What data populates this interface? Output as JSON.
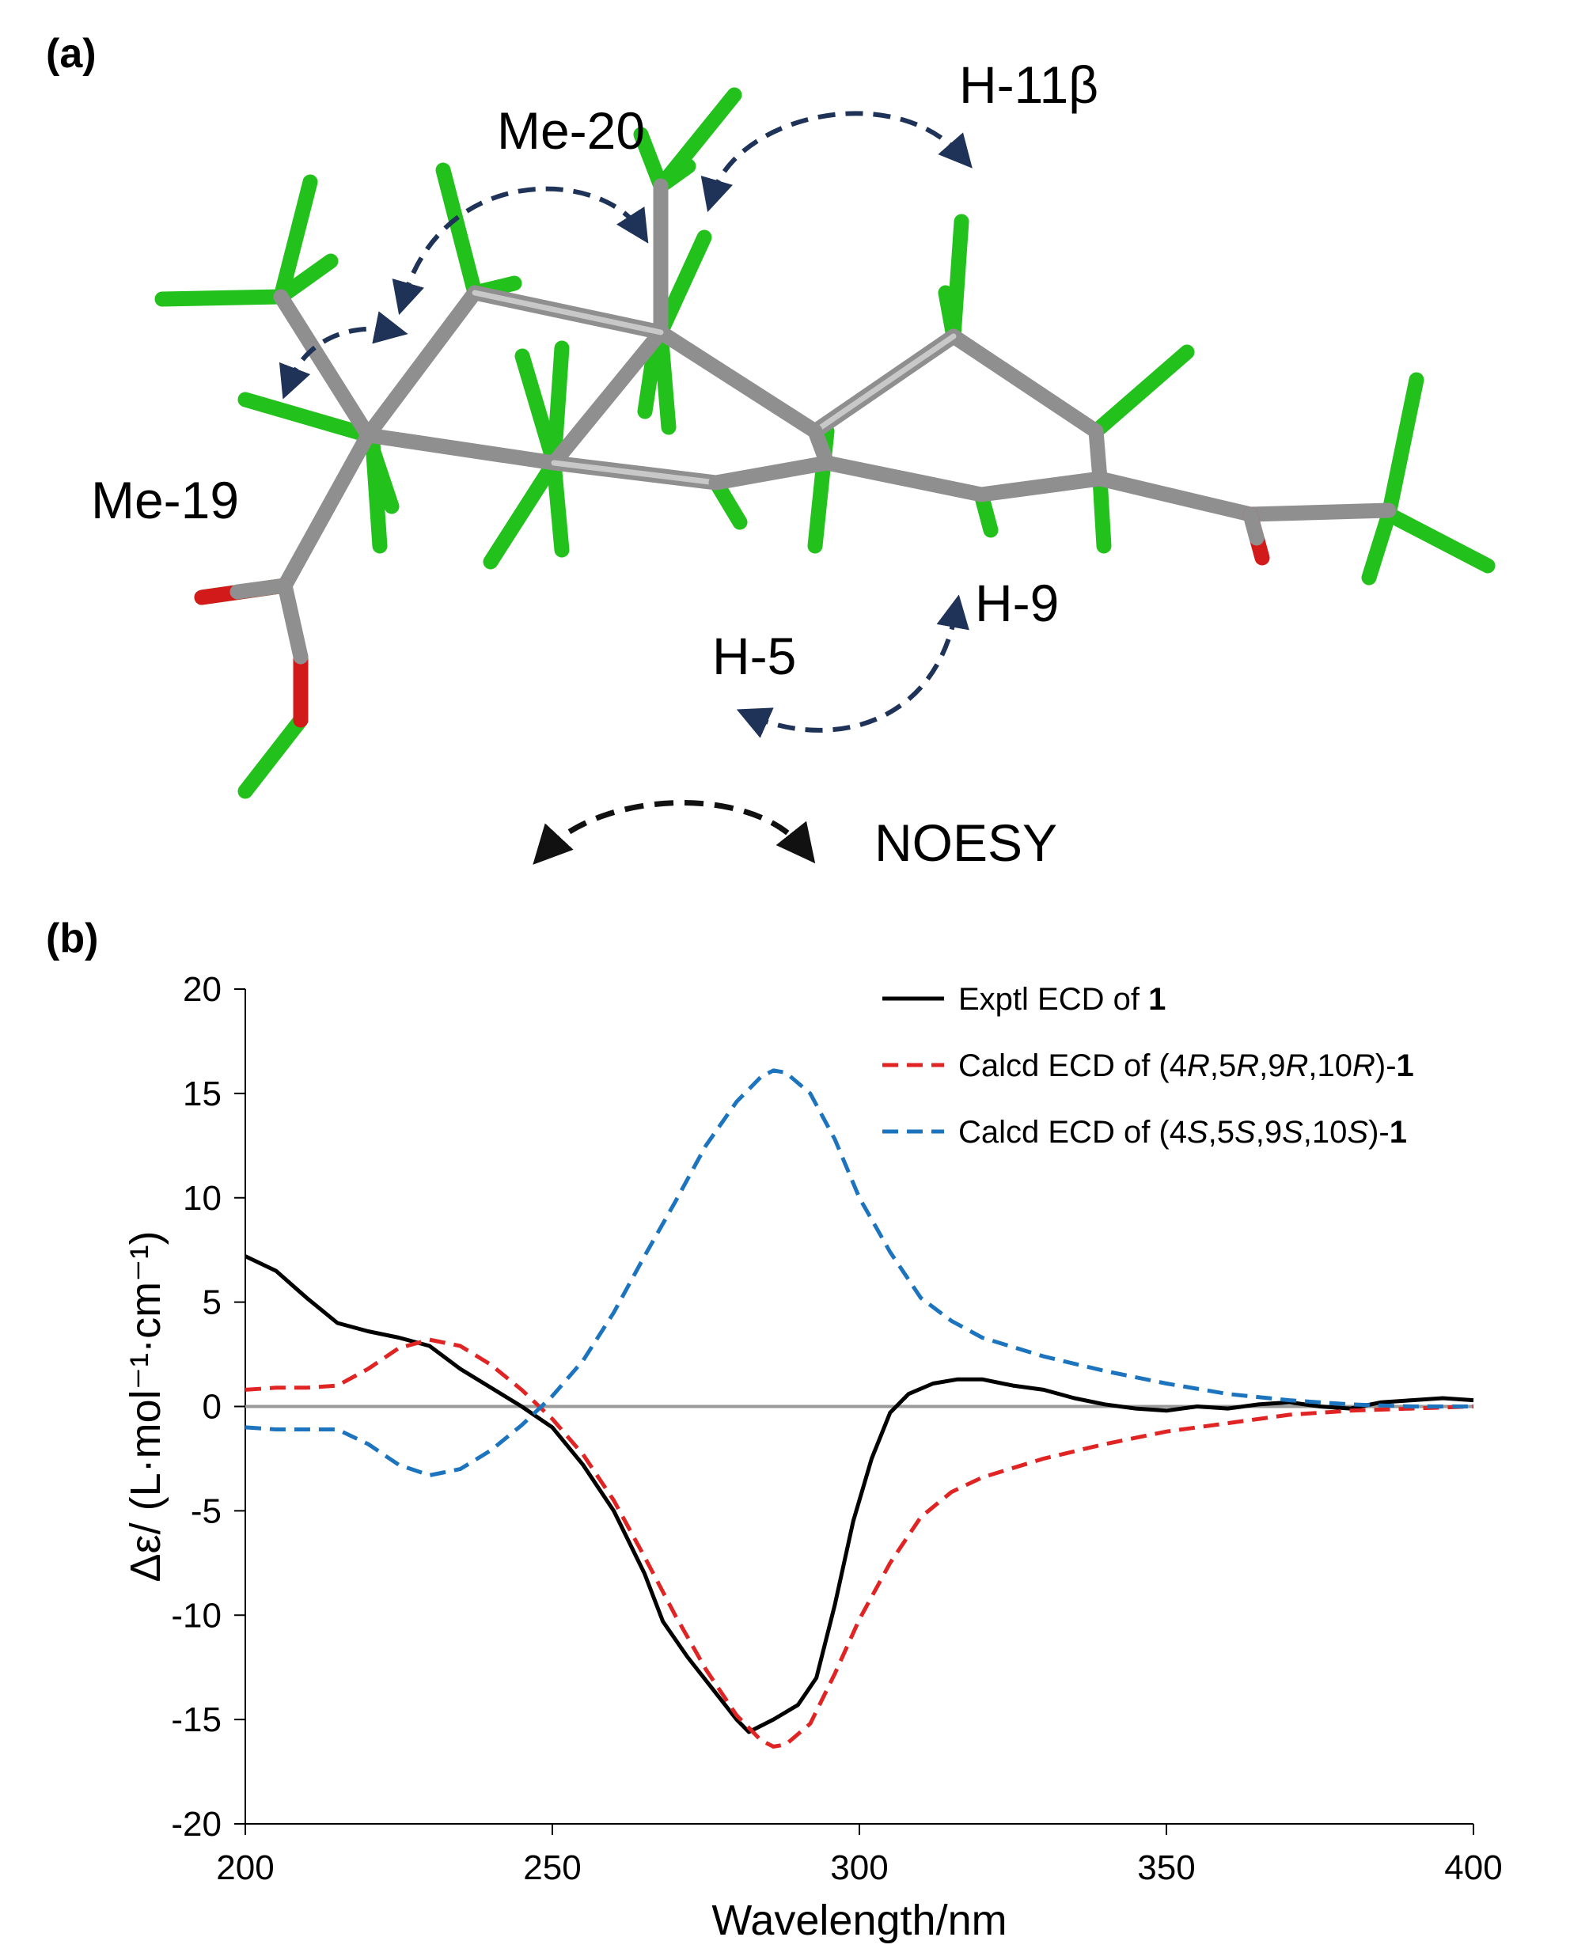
{
  "panel_a": {
    "label": "(a)",
    "atom_labels": [
      "Me-20",
      "H-11β",
      "Me-19",
      "H-5",
      "H-9"
    ],
    "legend_label": "NOESY",
    "colors": {
      "carbon": "#8f8f8f",
      "hydrogen": "#22c11c",
      "oxygen": "#d21a1a",
      "noe_arrow": "#1f3358",
      "legend_arrow": "#111111"
    }
  },
  "panel_b": {
    "label": "(b)"
  },
  "chart_data": {
    "type": "line",
    "xlabel": "Wavelength/nm",
    "ylabel": "Δε/ (L·mol⁻¹·cm⁻¹)",
    "xlim": [
      200,
      400
    ],
    "ylim": [
      -20,
      20
    ],
    "xticks": [
      200,
      250,
      300,
      350,
      400
    ],
    "yticks": [
      20,
      15,
      10,
      5,
      0,
      -5,
      -10,
      -15,
      -20
    ],
    "grid": false,
    "zero_line": true,
    "legend_position": "top-right",
    "series": [
      {
        "name": "Exptl ECD of 1",
        "legend_rich": [
          {
            "t": "Exptl ECD of "
          },
          {
            "t": "1",
            "b": true
          }
        ],
        "color": "#000000",
        "dash": "solid",
        "x": [
          200,
          205,
          210,
          215,
          220,
          225,
          230,
          235,
          240,
          245,
          250,
          255,
          260,
          265,
          268,
          272,
          276,
          280,
          282,
          286,
          290,
          293,
          296,
          299,
          302,
          305,
          308,
          312,
          316,
          320,
          325,
          330,
          335,
          340,
          345,
          350,
          355,
          360,
          365,
          370,
          375,
          380,
          385,
          390,
          395,
          400
        ],
        "y": [
          7.2,
          6.5,
          5.2,
          4.0,
          3.6,
          3.3,
          2.9,
          1.8,
          0.9,
          0.0,
          -1.0,
          -2.8,
          -5.0,
          -8.0,
          -10.3,
          -12.0,
          -13.5,
          -15.0,
          -15.6,
          -15.0,
          -14.3,
          -13.0,
          -9.5,
          -5.5,
          -2.5,
          -0.3,
          0.6,
          1.1,
          1.3,
          1.3,
          1.0,
          0.8,
          0.4,
          0.1,
          -0.1,
          -0.2,
          0.0,
          -0.1,
          0.1,
          0.2,
          0.0,
          -0.1,
          0.2,
          0.3,
          0.4,
          0.3
        ]
      },
      {
        "name": "Calcd ECD of (4R,5R,9R,10R)-1",
        "legend_rich": [
          {
            "t": "Calcd ECD of (4"
          },
          {
            "t": "R",
            "i": true
          },
          {
            "t": ",5"
          },
          {
            "t": "R",
            "i": true
          },
          {
            "t": ",9"
          },
          {
            "t": "R",
            "i": true
          },
          {
            "t": ",10"
          },
          {
            "t": "R",
            "i": true
          },
          {
            "t": ")-"
          },
          {
            "t": "1",
            "b": true
          }
        ],
        "color": "#e02424",
        "dash": "dashed",
        "x": [
          200,
          205,
          210,
          215,
          220,
          225,
          230,
          235,
          240,
          245,
          250,
          255,
          260,
          265,
          270,
          275,
          280,
          284,
          286,
          288,
          292,
          296,
          300,
          305,
          310,
          315,
          320,
          330,
          340,
          350,
          360,
          370,
          380,
          390,
          400
        ],
        "y": [
          0.8,
          0.9,
          0.9,
          1.0,
          1.8,
          2.8,
          3.2,
          2.9,
          2.0,
          0.8,
          -0.6,
          -2.3,
          -4.5,
          -7.2,
          -10.0,
          -12.6,
          -14.8,
          -16.0,
          -16.3,
          -16.2,
          -15.2,
          -12.8,
          -10.2,
          -7.5,
          -5.3,
          -4.1,
          -3.4,
          -2.5,
          -1.8,
          -1.2,
          -0.8,
          -0.4,
          -0.2,
          -0.1,
          0.0
        ]
      },
      {
        "name": "Calcd ECD of (4S,5S,9S,10S)-1",
        "legend_rich": [
          {
            "t": "Calcd ECD of (4"
          },
          {
            "t": "S",
            "i": true
          },
          {
            "t": ",5"
          },
          {
            "t": "S",
            "i": true
          },
          {
            "t": ",9"
          },
          {
            "t": "S",
            "i": true
          },
          {
            "t": ",10"
          },
          {
            "t": "S",
            "i": true
          },
          {
            "t": ")-"
          },
          {
            "t": "1",
            "b": true
          }
        ],
        "color": "#1b74bd",
        "dash": "dashed",
        "x": [
          200,
          205,
          210,
          215,
          220,
          225,
          230,
          235,
          240,
          245,
          250,
          255,
          260,
          265,
          270,
          275,
          280,
          284,
          286,
          288,
          292,
          296,
          300,
          305,
          310,
          315,
          320,
          330,
          340,
          350,
          360,
          370,
          380,
          390,
          400
        ],
        "y": [
          -1.0,
          -1.1,
          -1.1,
          -1.1,
          -1.8,
          -2.8,
          -3.3,
          -3.0,
          -2.1,
          -0.9,
          0.5,
          2.2,
          4.5,
          7.2,
          9.8,
          12.5,
          14.6,
          15.8,
          16.1,
          16.0,
          15.0,
          12.8,
          10.0,
          7.4,
          5.2,
          4.1,
          3.3,
          2.4,
          1.7,
          1.1,
          0.6,
          0.3,
          0.1,
          0.0,
          0.0
        ]
      }
    ]
  }
}
